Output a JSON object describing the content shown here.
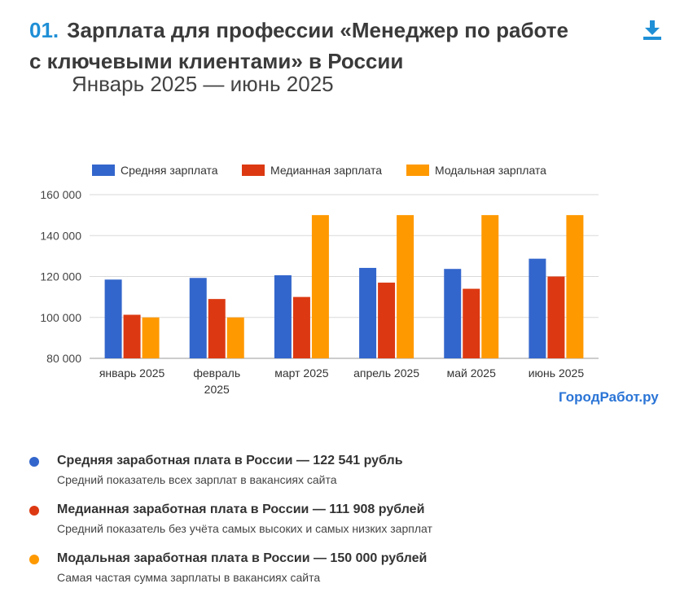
{
  "header": {
    "number": "01.",
    "title_line1": "Зарплата для профессии «Менеджер по работе",
    "title_line2": "с ключевыми клиентами» в России",
    "period": "Январь 2025 — июнь 2025",
    "download_icon": "download-icon"
  },
  "brand": "ГородРабот.ру",
  "colors": {
    "avg": "#3366cc",
    "median": "#dc3912",
    "mode": "#ff9900",
    "accent": "#1f8fd6"
  },
  "chart_data": {
    "type": "bar",
    "categories": [
      [
        "январь 2025"
      ],
      [
        "февраль",
        "2025"
      ],
      [
        "март 2025"
      ],
      [
        "апрель 2025"
      ],
      [
        "май 2025"
      ],
      [
        "июнь 2025"
      ]
    ],
    "series": [
      {
        "name": "Средняя зарплата",
        "color": "#3366cc",
        "values": [
          118500,
          119300,
          120600,
          124200,
          123700,
          128700
        ]
      },
      {
        "name": "Медианная зарплата",
        "color": "#dc3912",
        "values": [
          101300,
          109000,
          110000,
          117000,
          114000,
          120000
        ]
      },
      {
        "name": "Модальная зарплата",
        "color": "#ff9900",
        "values": [
          100000,
          100000,
          150000,
          150000,
          150000,
          150000
        ]
      }
    ],
    "ylim": [
      80000,
      160000
    ],
    "yticks": [
      80000,
      100000,
      120000,
      140000,
      160000
    ],
    "ytick_labels": [
      "80 000",
      "100 000",
      "120 000",
      "140 000",
      "160 000"
    ],
    "legend_position": "top",
    "grid": true
  },
  "stats": [
    {
      "title": "Средняя заработная плата в России — 122 541 рубль",
      "subtitle": "Средний показатель всех зарплат в вакансиях сайта",
      "color": "#3366cc"
    },
    {
      "title": "Медианная заработная плата в России — 111 908 рублей",
      "subtitle": "Средний показатель без учёта самых высоких и самых низких зарплат",
      "color": "#dc3912"
    },
    {
      "title": "Модальная заработная плата в России — 150 000 рублей",
      "subtitle": "Самая частая сумма зарплаты в вакансиях сайта",
      "color": "#ff9900"
    }
  ]
}
